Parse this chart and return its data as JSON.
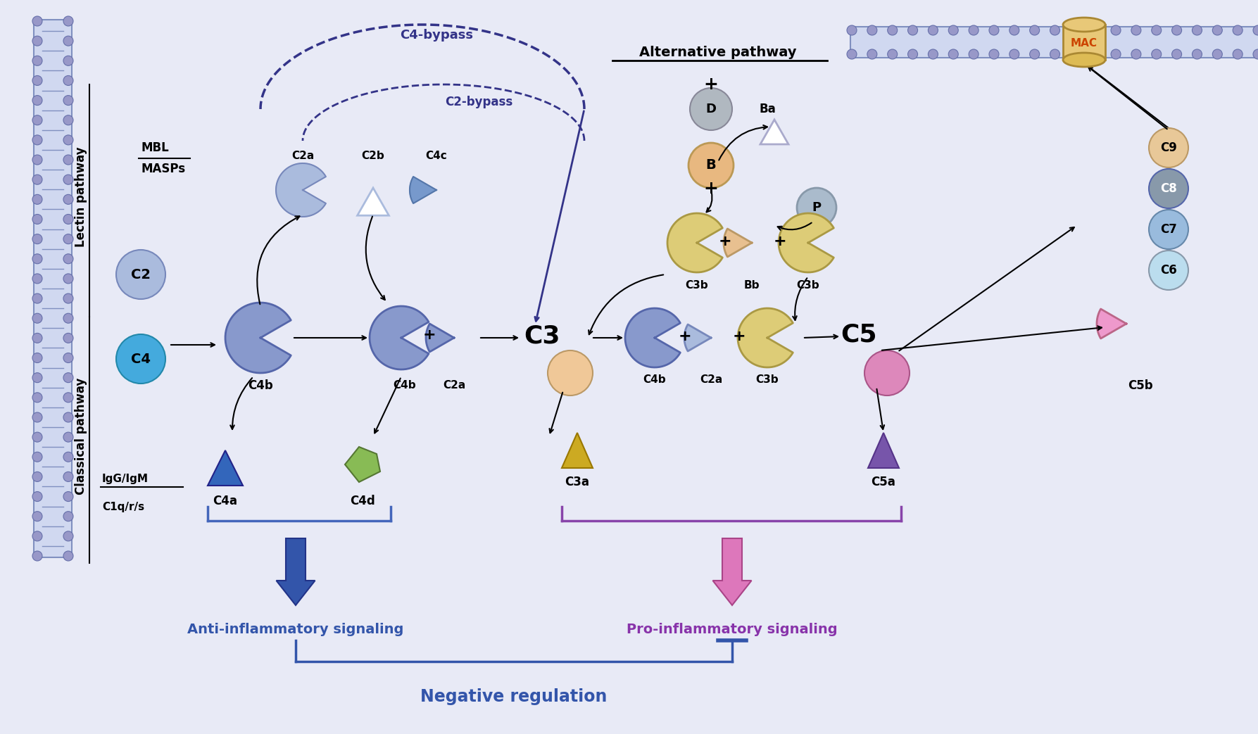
{
  "bg_color": "#e8eaf6",
  "title": "",
  "membrane_color": "#b0b8d8",
  "membrane_lipid_color": "#9098c0",
  "pathway_labels": {
    "lectin": "Lectin pathway",
    "classical": "Classical pathway",
    "alternative": "Alternative pathway"
  },
  "bypass_labels": [
    "C4-bypass",
    "C2-bypass"
  ],
  "bottom_labels": {
    "anti_inflam": "Anti-inflammatory signaling",
    "pro_inflam": "Pro-inflammatory signaling",
    "neg_reg": "Negative regulation"
  },
  "colors": {
    "blue_purple": "#8888cc",
    "light_blue": "#aabbee",
    "medium_blue": "#7799cc",
    "dark_blue": "#5566aa",
    "cyan_blue": "#44aadd",
    "gold": "#ddbb66",
    "peach": "#e8c090",
    "pink": "#dd88bb",
    "green_shape": "#88bb66",
    "gray_circle": "#aaaaaa",
    "arrow_blue": "#3355aa",
    "arrow_pink": "#cc66aa",
    "bracket_blue": "#4466bb",
    "bracket_purple": "#8844aa",
    "C4a_triangle": "#3355aa",
    "C3a_triangle": "#ccaa22",
    "C5a_triangle": "#6644aa",
    "Ba_triangle": "#ccccdd",
    "MAC_color": "#ddaa44"
  }
}
